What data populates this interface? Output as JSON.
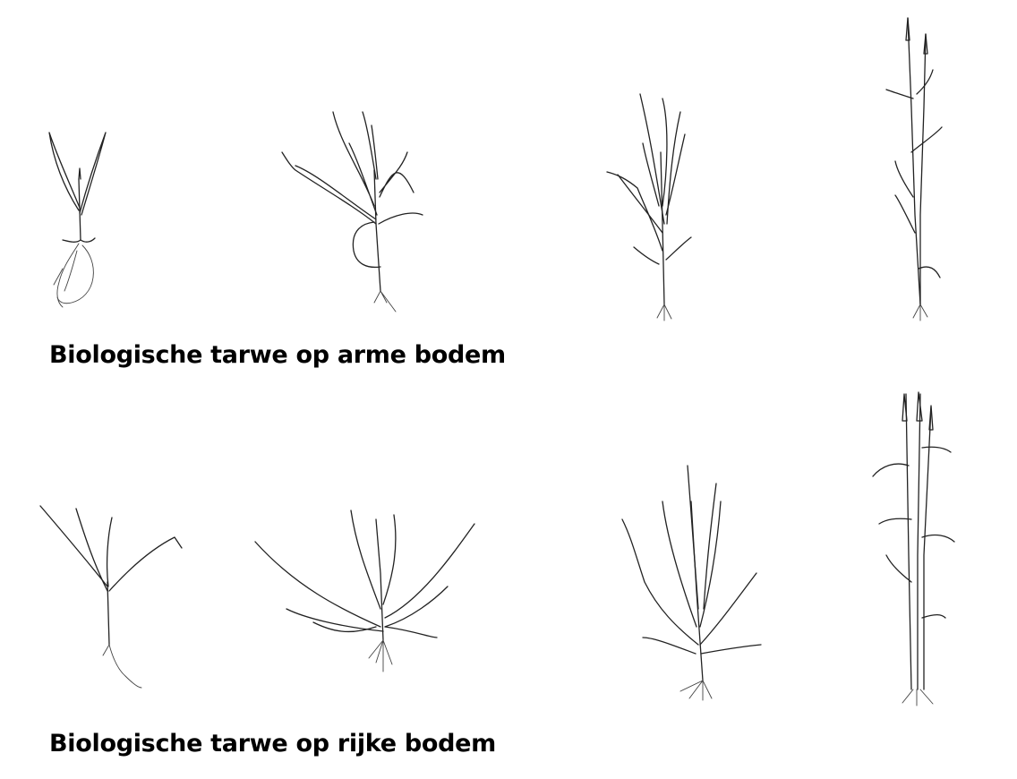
{
  "captions": {
    "poor_soil": "Biologische tarwe op arme bodem",
    "rich_soil": "Biologische tarwe op rijke bodem"
  }
}
